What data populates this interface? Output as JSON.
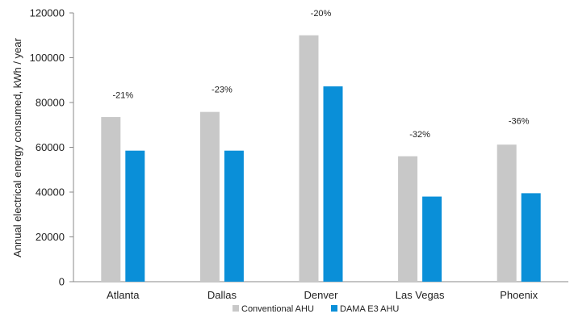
{
  "chart_data": {
    "type": "bar",
    "categories": [
      "Atlanta",
      "Dallas",
      "Denver",
      "Las Vegas",
      "Phoenix"
    ],
    "series": [
      {
        "name": "Conventional AHU",
        "color": "#c8c8c8",
        "values": [
          73500,
          75800,
          110000,
          56000,
          61200
        ]
      },
      {
        "name": "DAMA E3 AHU",
        "color": "#0a8fd8",
        "values": [
          58500,
          58500,
          87200,
          38000,
          39500
        ]
      }
    ],
    "annotations": [
      "-21%",
      "-23%",
      "-20%",
      "-32%",
      "-36%"
    ],
    "annotation_values": [
      82000,
      84500,
      118500,
      64500,
      70500
    ],
    "ylabel": "Annual electrical energy consumed,  kWh / year",
    "xlabel": "",
    "ylim": [
      0,
      120000
    ],
    "yticks": [
      0,
      20000,
      40000,
      60000,
      80000,
      100000,
      120000
    ],
    "grid": false,
    "legend_position": "bottom"
  }
}
